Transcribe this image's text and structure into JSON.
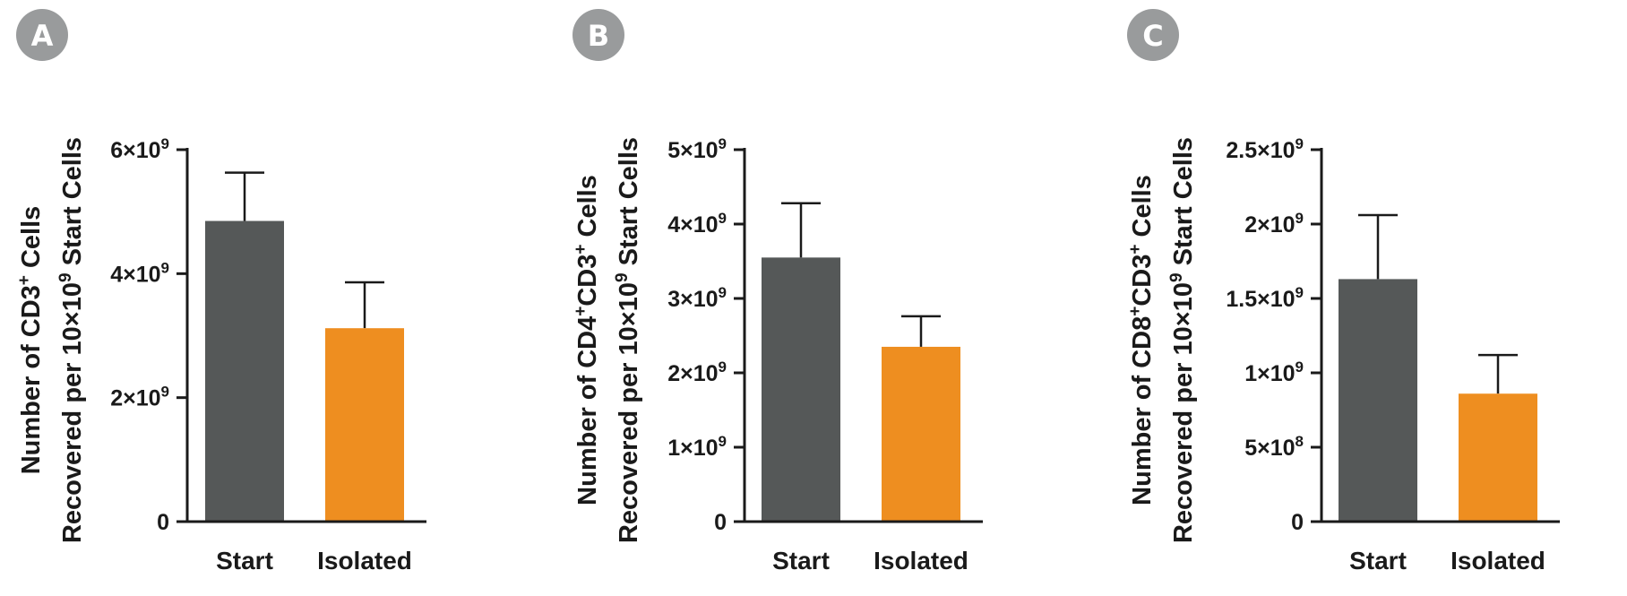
{
  "colors": {
    "start": "#555858",
    "isolated": "#ee8e20",
    "axis": "#1a1a1a",
    "badge": "#999b9c"
  },
  "chart_data": [
    {
      "panel": "A",
      "type": "bar",
      "categories": [
        "Start",
        "Isolated"
      ],
      "values": [
        4850000000.0,
        3120000000.0
      ],
      "errors": [
        780000000.0,
        740000000.0
      ],
      "ylim": [
        0,
        6000000000.0
      ],
      "yticks": [
        {
          "value": 0,
          "mant": "0",
          "exp": ""
        },
        {
          "value": 2000000000.0,
          "mant": "2×10",
          "exp": "9"
        },
        {
          "value": 4000000000.0,
          "mant": "4×10",
          "exp": "9"
        },
        {
          "value": 6000000000.0,
          "mant": "6×10",
          "exp": "9"
        }
      ],
      "ylabel_line1": [
        {
          "t": "Number of CD3",
          "sup": false
        },
        {
          "t": "+",
          "sup": true
        },
        {
          "t": " Cells",
          "sup": false
        }
      ],
      "ylabel_line2": [
        {
          "t": "Recovered per 10×10",
          "sup": false
        },
        {
          "t": "9",
          "sup": true
        },
        {
          "t": " Start Cells",
          "sup": false
        }
      ]
    },
    {
      "panel": "B",
      "type": "bar",
      "categories": [
        "Start",
        "Isolated"
      ],
      "values": [
        3550000000.0,
        2350000000.0
      ],
      "errors": [
        730000000.0,
        410000000.0
      ],
      "ylim": [
        0,
        5000000000.0
      ],
      "yticks": [
        {
          "value": 0,
          "mant": "0",
          "exp": ""
        },
        {
          "value": 1000000000.0,
          "mant": "1×10",
          "exp": "9"
        },
        {
          "value": 2000000000.0,
          "mant": "2×10",
          "exp": "9"
        },
        {
          "value": 3000000000.0,
          "mant": "3×10",
          "exp": "9"
        },
        {
          "value": 4000000000.0,
          "mant": "4×10",
          "exp": "9"
        },
        {
          "value": 5000000000.0,
          "mant": "5×10",
          "exp": "9"
        }
      ],
      "ylabel_line1": [
        {
          "t": "Number of CD4",
          "sup": false
        },
        {
          "t": "+",
          "sup": true
        },
        {
          "t": "CD3",
          "sup": false
        },
        {
          "t": "+",
          "sup": true
        },
        {
          "t": " Cells",
          "sup": false
        }
      ],
      "ylabel_line2": [
        {
          "t": "Recovered per 10×10",
          "sup": false
        },
        {
          "t": "9",
          "sup": true
        },
        {
          "t": " Start Cells",
          "sup": false
        }
      ]
    },
    {
      "panel": "C",
      "type": "bar",
      "categories": [
        "Start",
        "Isolated"
      ],
      "values": [
        1630000000.0,
        860000000.0
      ],
      "errors": [
        430000000.0,
        260000000.0
      ],
      "ylim": [
        0,
        2500000000.0
      ],
      "yticks": [
        {
          "value": 0,
          "mant": "0",
          "exp": ""
        },
        {
          "value": 500000000.0,
          "mant": "5×10",
          "exp": "8"
        },
        {
          "value": 1000000000.0,
          "mant": "1×10",
          "exp": "9"
        },
        {
          "value": 1500000000.0,
          "mant": "1.5×10",
          "exp": "9"
        },
        {
          "value": 2000000000.0,
          "mant": "2×10",
          "exp": "9"
        },
        {
          "value": 2500000000.0,
          "mant": "2.5×10",
          "exp": "9"
        }
      ],
      "ylabel_line1": [
        {
          "t": "Number of CD8",
          "sup": false
        },
        {
          "t": "+",
          "sup": true
        },
        {
          "t": "CD3",
          "sup": false
        },
        {
          "t": "+",
          "sup": true
        },
        {
          "t": " Cells",
          "sup": false
        }
      ],
      "ylabel_line2": [
        {
          "t": "Recovered per 10×10",
          "sup": false
        },
        {
          "t": "9",
          "sup": true
        },
        {
          "t": " Start Cells",
          "sup": false
        }
      ]
    }
  ]
}
